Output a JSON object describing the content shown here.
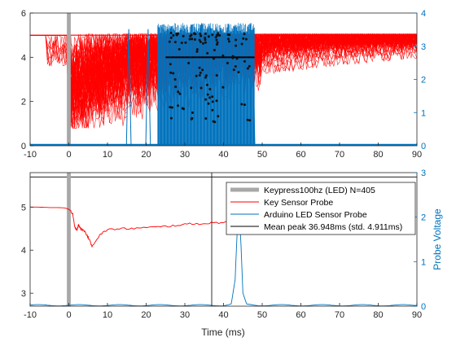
{
  "colors": {
    "red": "#ff0000",
    "blue": "#0072bd",
    "gray": "#a8a8a8",
    "black": "#000000",
    "axis": "#262626"
  },
  "chart_data": [
    {
      "type": "line",
      "panel": "top",
      "xlim": [
        -10,
        90
      ],
      "ylim_left": [
        0,
        6
      ],
      "ylim_right": [
        0,
        4
      ],
      "xticks": [
        -10,
        0,
        10,
        20,
        30,
        40,
        50,
        60,
        70,
        80,
        90
      ],
      "yticks_left": [
        0,
        2,
        4,
        6
      ],
      "yticks_right": [
        0,
        1,
        2,
        3,
        4
      ],
      "keypress_marker_x": 0,
      "key_sensor_level_after_key": 5.0,
      "key_sensor_min_region": [
        10,
        1.2
      ],
      "led_pulse_window": [
        23,
        48
      ],
      "led_pulse_height": 3.7,
      "isolated_blue_spikes": [
        15.5,
        20.5,
        47.5
      ],
      "mean_line": {
        "x": [
          25,
          48
        ],
        "y": 4.0
      },
      "peak_points_x_range": [
        26,
        47
      ],
      "peak_points_y_range": [
        1.0,
        5.1
      ],
      "grid": false
    },
    {
      "type": "line",
      "panel": "bottom",
      "xlabel": "Time (ms)",
      "ylabel_right": "Probe Voltage",
      "xlim": [
        -10,
        90
      ],
      "ylim_left": [
        2.7,
        5.8
      ],
      "ylim_right": [
        0,
        3
      ],
      "xticks": [
        -10,
        0,
        10,
        20,
        30,
        40,
        50,
        60,
        70,
        80,
        90
      ],
      "yticks_left": [
        3,
        4,
        5
      ],
      "yticks_right": [
        0,
        1,
        2,
        3
      ],
      "keypress_marker_x": 0,
      "mean_peak_x": 36.948,
      "reference_line_y": 5.7,
      "key_sensor_series": {
        "x": [
          -10,
          -8,
          -5,
          -3,
          -1,
          0,
          1,
          1.5,
          2,
          2.5,
          3,
          4,
          5,
          6,
          8,
          10,
          15,
          20,
          25,
          30,
          35,
          40,
          45,
          48,
          50
        ],
        "y": [
          5.0,
          5.0,
          4.99,
          4.99,
          4.98,
          4.95,
          4.85,
          4.55,
          4.45,
          4.6,
          4.5,
          4.45,
          4.3,
          4.1,
          4.35,
          4.48,
          4.5,
          4.52,
          4.55,
          4.6,
          4.62,
          4.65,
          4.7,
          4.75,
          4.78
        ]
      },
      "led_sensor_series": {
        "x": [
          -10,
          0,
          10,
          20,
          30,
          40,
          42,
          43,
          43.5,
          44,
          44.5,
          45,
          46,
          50,
          60,
          70,
          80,
          90
        ],
        "y": [
          0.02,
          0.02,
          0.02,
          0.02,
          0.02,
          0.02,
          0.05,
          0.6,
          1.6,
          2.2,
          1.4,
          0.3,
          0.04,
          0.02,
          0.02,
          0.02,
          0.02,
          0.02
        ]
      },
      "legend": {
        "placement": "top-right",
        "entries": [
          {
            "label": "Keypress100hz (LED)  N=405",
            "color": "#a8a8a8",
            "style": "thick"
          },
          {
            "label": "Key Sensor Probe",
            "color": "#ff0000",
            "style": "line"
          },
          {
            "label": "Arduino LED Sensor Probe",
            "color": "#0072bd",
            "style": "line"
          },
          {
            "label": "Mean peak 36.948ms (std. 4.911ms)",
            "color": "#000000",
            "style": "line"
          }
        ]
      },
      "grid": false
    }
  ]
}
